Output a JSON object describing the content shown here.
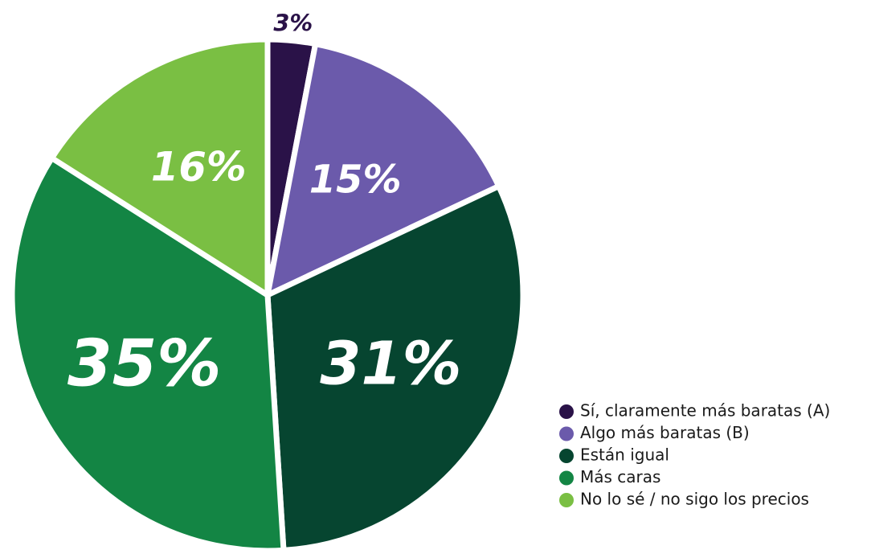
{
  "chart_data": {
    "type": "pie",
    "categories": [
      "Sí, claramente más baratas (A)",
      "Algo más baratas (B)",
      "Están igual",
      "Más caras",
      "No lo sé / no sigo los precios"
    ],
    "values": [
      3,
      15,
      31,
      35,
      16
    ],
    "value_labels": [
      "3%",
      "15%",
      "31%",
      "35%",
      "16%"
    ],
    "colors": [
      "#2a1248",
      "#6b5aab",
      "#064530",
      "#138544",
      "#7abf43"
    ],
    "legend": "bottom-right"
  }
}
